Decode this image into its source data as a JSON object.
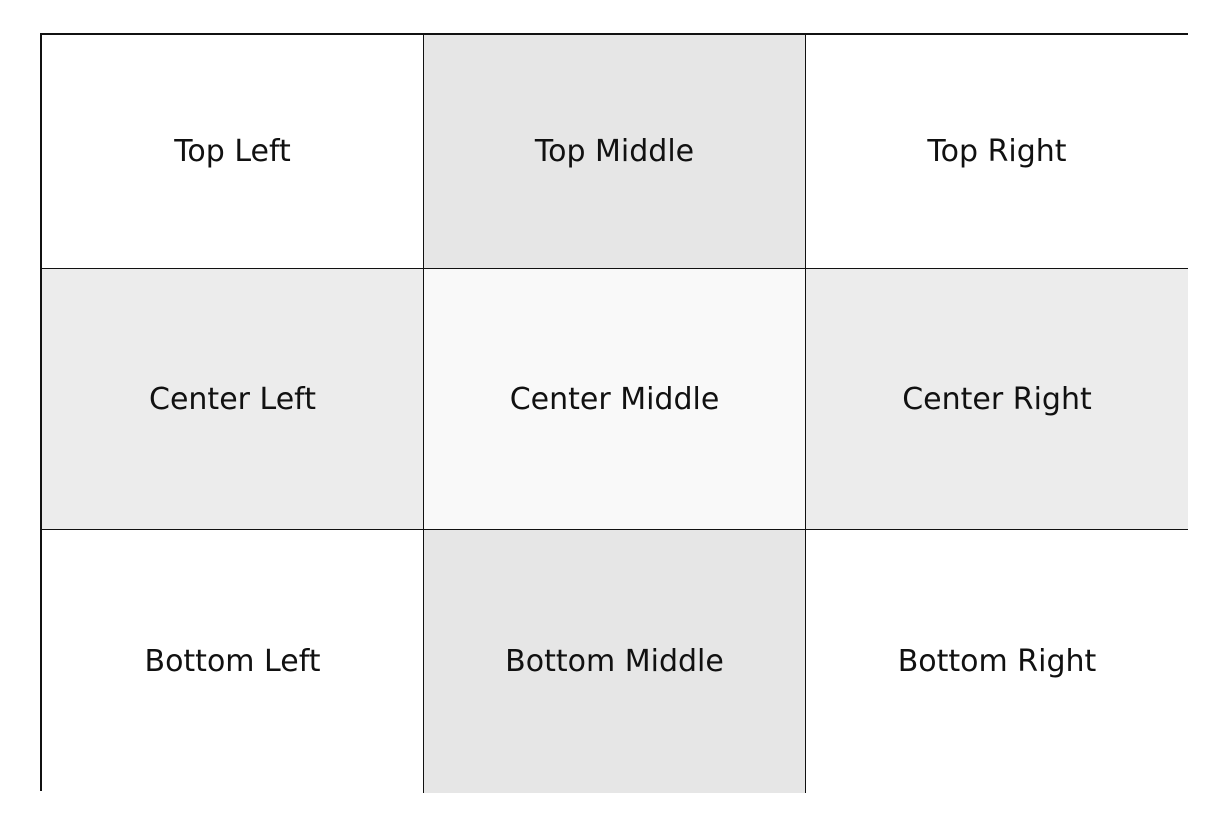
{
  "grid": {
    "rows": [
      {
        "cells": [
          {
            "label": "Top Left",
            "bg": "#ffffff"
          },
          {
            "label": "Top Middle",
            "bg": "#e6e6e6"
          },
          {
            "label": "Top Right",
            "bg": "#ffffff"
          }
        ]
      },
      {
        "cells": [
          {
            "label": "Center Left",
            "bg": "#ececec"
          },
          {
            "label": "Center Middle",
            "bg": "#f9f9f9"
          },
          {
            "label": "Center Right",
            "bg": "#ececec"
          }
        ]
      },
      {
        "cells": [
          {
            "label": "Bottom Left",
            "bg": "#ffffff"
          },
          {
            "label": "Bottom Middle",
            "bg": "#e6e6e6"
          },
          {
            "label": "Bottom Right",
            "bg": "#ffffff"
          }
        ]
      }
    ]
  }
}
